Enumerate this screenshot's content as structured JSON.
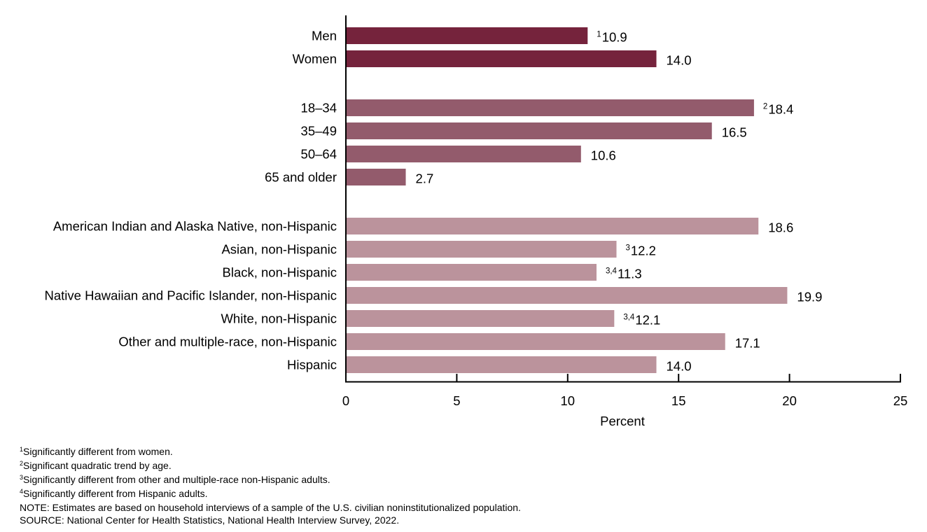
{
  "chart_data": {
    "type": "bar",
    "orientation": "horizontal",
    "title": "",
    "xlabel": "Percent",
    "ylabel": "",
    "xlim": [
      0,
      25
    ],
    "xticks": [
      0,
      5,
      10,
      15,
      20,
      25
    ],
    "grid": false,
    "colors": {
      "sex": "#75233c",
      "age": "#935b6c",
      "race": "#bb939c",
      "axis": "#000000"
    },
    "groups": [
      {
        "name": "sex",
        "bars": [
          {
            "label": "Men",
            "value": 10.9,
            "display": "10.9",
            "sup": "1"
          },
          {
            "label": "Women",
            "value": 14.0,
            "display": "14.0",
            "sup": ""
          }
        ]
      },
      {
        "name": "age",
        "bars": [
          {
            "label": "18–34",
            "value": 18.4,
            "display": "18.4",
            "sup": "2"
          },
          {
            "label": "35–49",
            "value": 16.5,
            "display": "16.5",
            "sup": ""
          },
          {
            "label": "50–64",
            "value": 10.6,
            "display": "10.6",
            "sup": ""
          },
          {
            "label": "65 and older",
            "value": 2.7,
            "display": "2.7",
            "sup": ""
          }
        ]
      },
      {
        "name": "race",
        "bars": [
          {
            "label": "American Indian and Alaska Native, non-Hispanic",
            "value": 18.6,
            "display": "18.6",
            "sup": ""
          },
          {
            "label": "Asian, non-Hispanic",
            "value": 12.2,
            "display": "12.2",
            "sup": "3"
          },
          {
            "label": "Black, non-Hispanic",
            "value": 11.3,
            "display": "11.3",
            "sup": "3,4"
          },
          {
            "label": "Native Hawaiian and Pacific Islander, non-Hispanic",
            "value": 19.9,
            "display": "19.9",
            "sup": ""
          },
          {
            "label": "White, non-Hispanic",
            "value": 12.1,
            "display": "12.1",
            "sup": "3,4"
          },
          {
            "label": "Other and multiple-race, non-Hispanic",
            "value": 17.1,
            "display": "17.1",
            "sup": ""
          },
          {
            "label": "Hispanic",
            "value": 14.0,
            "display": "14.0",
            "sup": ""
          }
        ]
      }
    ]
  },
  "notes": [
    {
      "sup": "1",
      "text": "Significantly different from women."
    },
    {
      "sup": "2",
      "text": "Significant quadratic trend by age."
    },
    {
      "sup": "3",
      "text": "Significantly different from other and multiple-race non-Hispanic adults."
    },
    {
      "sup": "4",
      "text": "Significantly different from Hispanic adults."
    },
    {
      "sup": "",
      "text": "NOTE: Estimates are based on household interviews of a sample of the U.S. civilian noninstitutionalized population."
    },
    {
      "sup": "",
      "text": "SOURCE: National Center for Health Statistics, National Health Interview Survey, 2022."
    }
  ]
}
